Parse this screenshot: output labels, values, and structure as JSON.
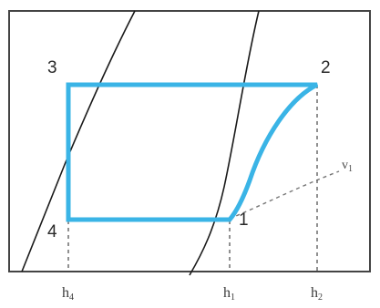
{
  "diagram": {
    "points": {
      "p1": "1",
      "p2": "2",
      "p3": "3",
      "p4": "4"
    },
    "axis_labels": {
      "h4": {
        "base": "h",
        "sub": "4"
      },
      "h1": {
        "base": "h",
        "sub": "1"
      },
      "h2": {
        "base": "h",
        "sub": "2"
      }
    },
    "isochore_label": {
      "base": "v",
      "sub": "1"
    },
    "colors": {
      "cycle": "#3ab4e6",
      "frame": "#444444",
      "curves": "#1a1a1a",
      "dashed": "#777777"
    }
  }
}
